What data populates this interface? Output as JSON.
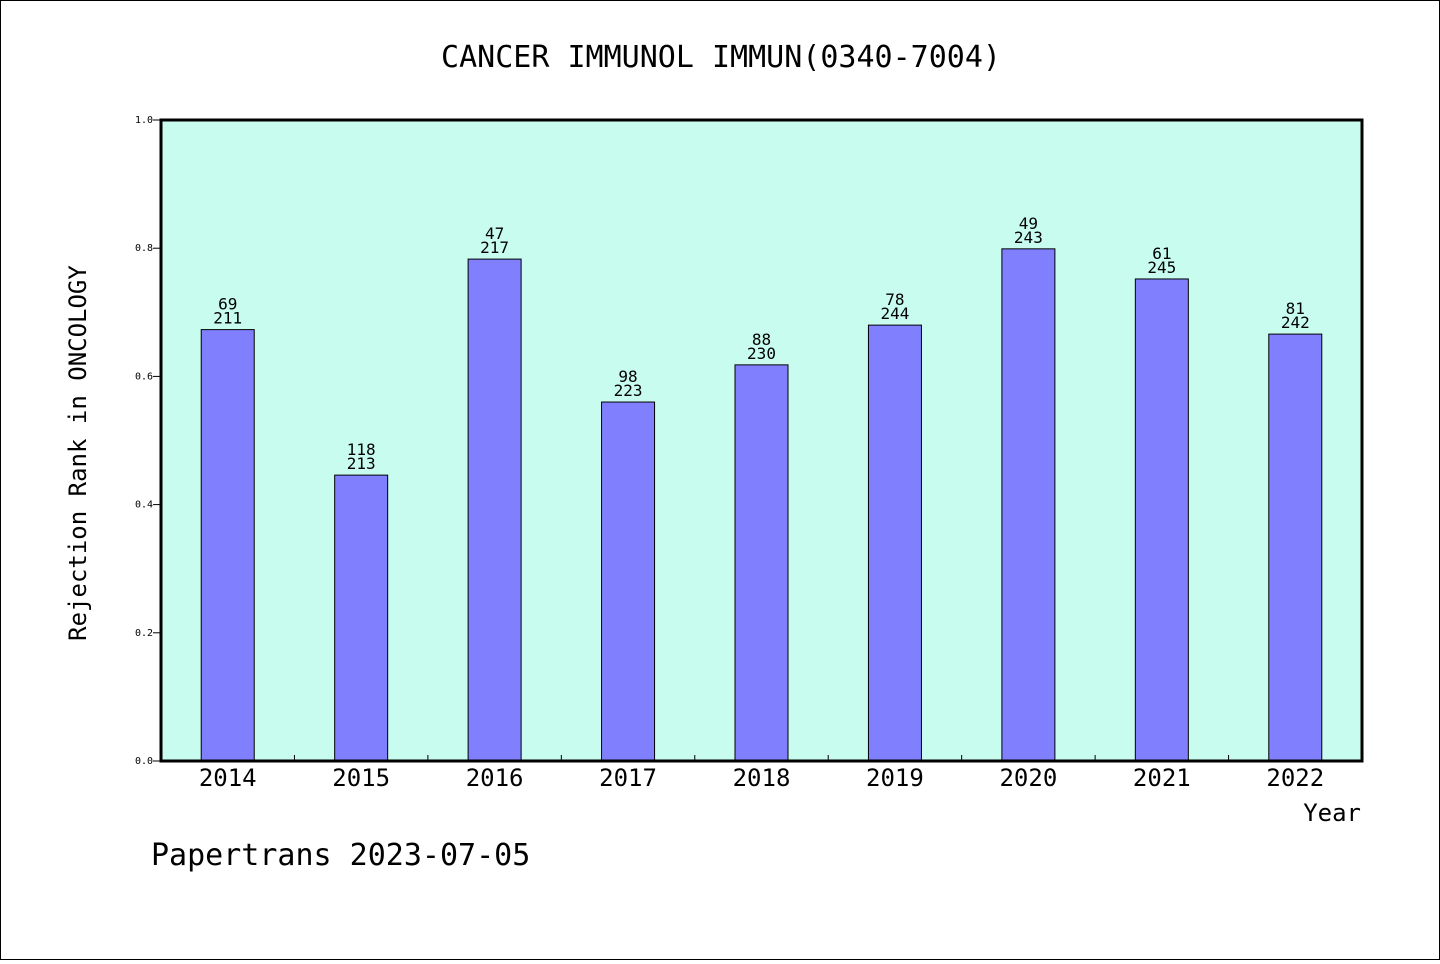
{
  "chart_data": {
    "type": "bar",
    "title": "CANCER IMMUNOL IMMUN(0340-7004)",
    "xlabel": "Year",
    "ylabel": "Rejection Rank in ONCOLOGY",
    "ylim": [
      0,
      1.0
    ],
    "yticks": [
      "0.0",
      "0.2",
      "0.4",
      "0.6",
      "0.8",
      "1.0"
    ],
    "categories": [
      "2014",
      "2015",
      "2016",
      "2017",
      "2018",
      "2019",
      "2020",
      "2021",
      "2022"
    ],
    "values": [
      0.673,
      0.446,
      0.783,
      0.56,
      0.618,
      0.68,
      0.799,
      0.752,
      0.666
    ],
    "rank_labels": [
      "69",
      "118",
      "47",
      "98",
      "88",
      "78",
      "49",
      "61",
      "81"
    ],
    "total_labels": [
      "211",
      "213",
      "217",
      "223",
      "230",
      "244",
      "243",
      "245",
      "242"
    ],
    "grid": false,
    "colors": {
      "plot_background": "#c8fcee",
      "bar_fill": "#8080ff",
      "bar_stroke": "#000000"
    }
  },
  "footer": {
    "text": "Papertrans 2023-07-05"
  }
}
